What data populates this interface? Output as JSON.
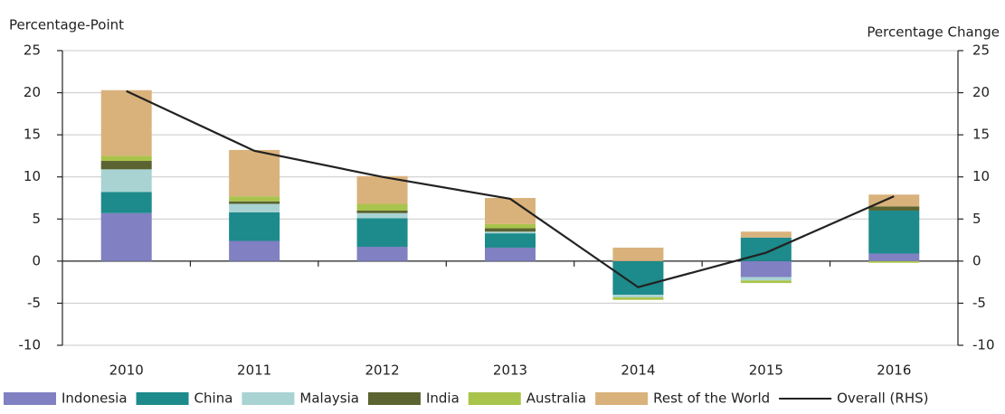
{
  "chart_data": {
    "type": "bar",
    "stacked": true,
    "y_label": "Percentage-Point",
    "y2_label": "Percentage Change",
    "categories": [
      "2010",
      "2011",
      "2012",
      "2013",
      "2014",
      "2015",
      "2016"
    ],
    "series": [
      {
        "name": "Indonesia",
        "color": "#8080c2",
        "values": [
          5.7,
          2.4,
          1.7,
          1.6,
          0,
          -1.9,
          0.9
        ]
      },
      {
        "name": "China",
        "color": "#1d8a8b",
        "values": [
          2.5,
          3.4,
          3.4,
          1.7,
          -4.0,
          2.8,
          5.1
        ]
      },
      {
        "name": "Malaysia",
        "color": "#a9d3d3",
        "values": [
          2.7,
          1.0,
          0.6,
          0.2,
          -0.3,
          -0.4,
          0
        ]
      },
      {
        "name": "India",
        "color": "#5b6431",
        "values": [
          1.0,
          0.3,
          0.3,
          0.4,
          0,
          0,
          0.5
        ]
      },
      {
        "name": "Australia",
        "color": "#a9c44c",
        "values": [
          0.6,
          0.6,
          0.8,
          0.5,
          -0.3,
          -0.3,
          -0.2
        ]
      },
      {
        "name": "Rest of the World",
        "color": "#d9b27b",
        "values": [
          7.8,
          5.5,
          3.3,
          3.1,
          1.6,
          0.7,
          1.4
        ]
      },
      {
        "name": "Overall (RHS)",
        "color": "#222222",
        "type": "line",
        "axis": "y2",
        "values": [
          20.2,
          13.1,
          10.0,
          7.4,
          -3.1,
          1.0,
          7.7
        ]
      }
    ],
    "ylim": [
      -10,
      25
    ],
    "yticks": [
      -10,
      -5,
      0,
      5,
      10,
      15,
      20,
      25
    ],
    "y2lim": [
      -10,
      25
    ],
    "y2ticks": [
      -10,
      -5,
      0,
      5,
      10,
      15,
      20,
      25
    ],
    "grid": true,
    "legend": "bottom"
  }
}
